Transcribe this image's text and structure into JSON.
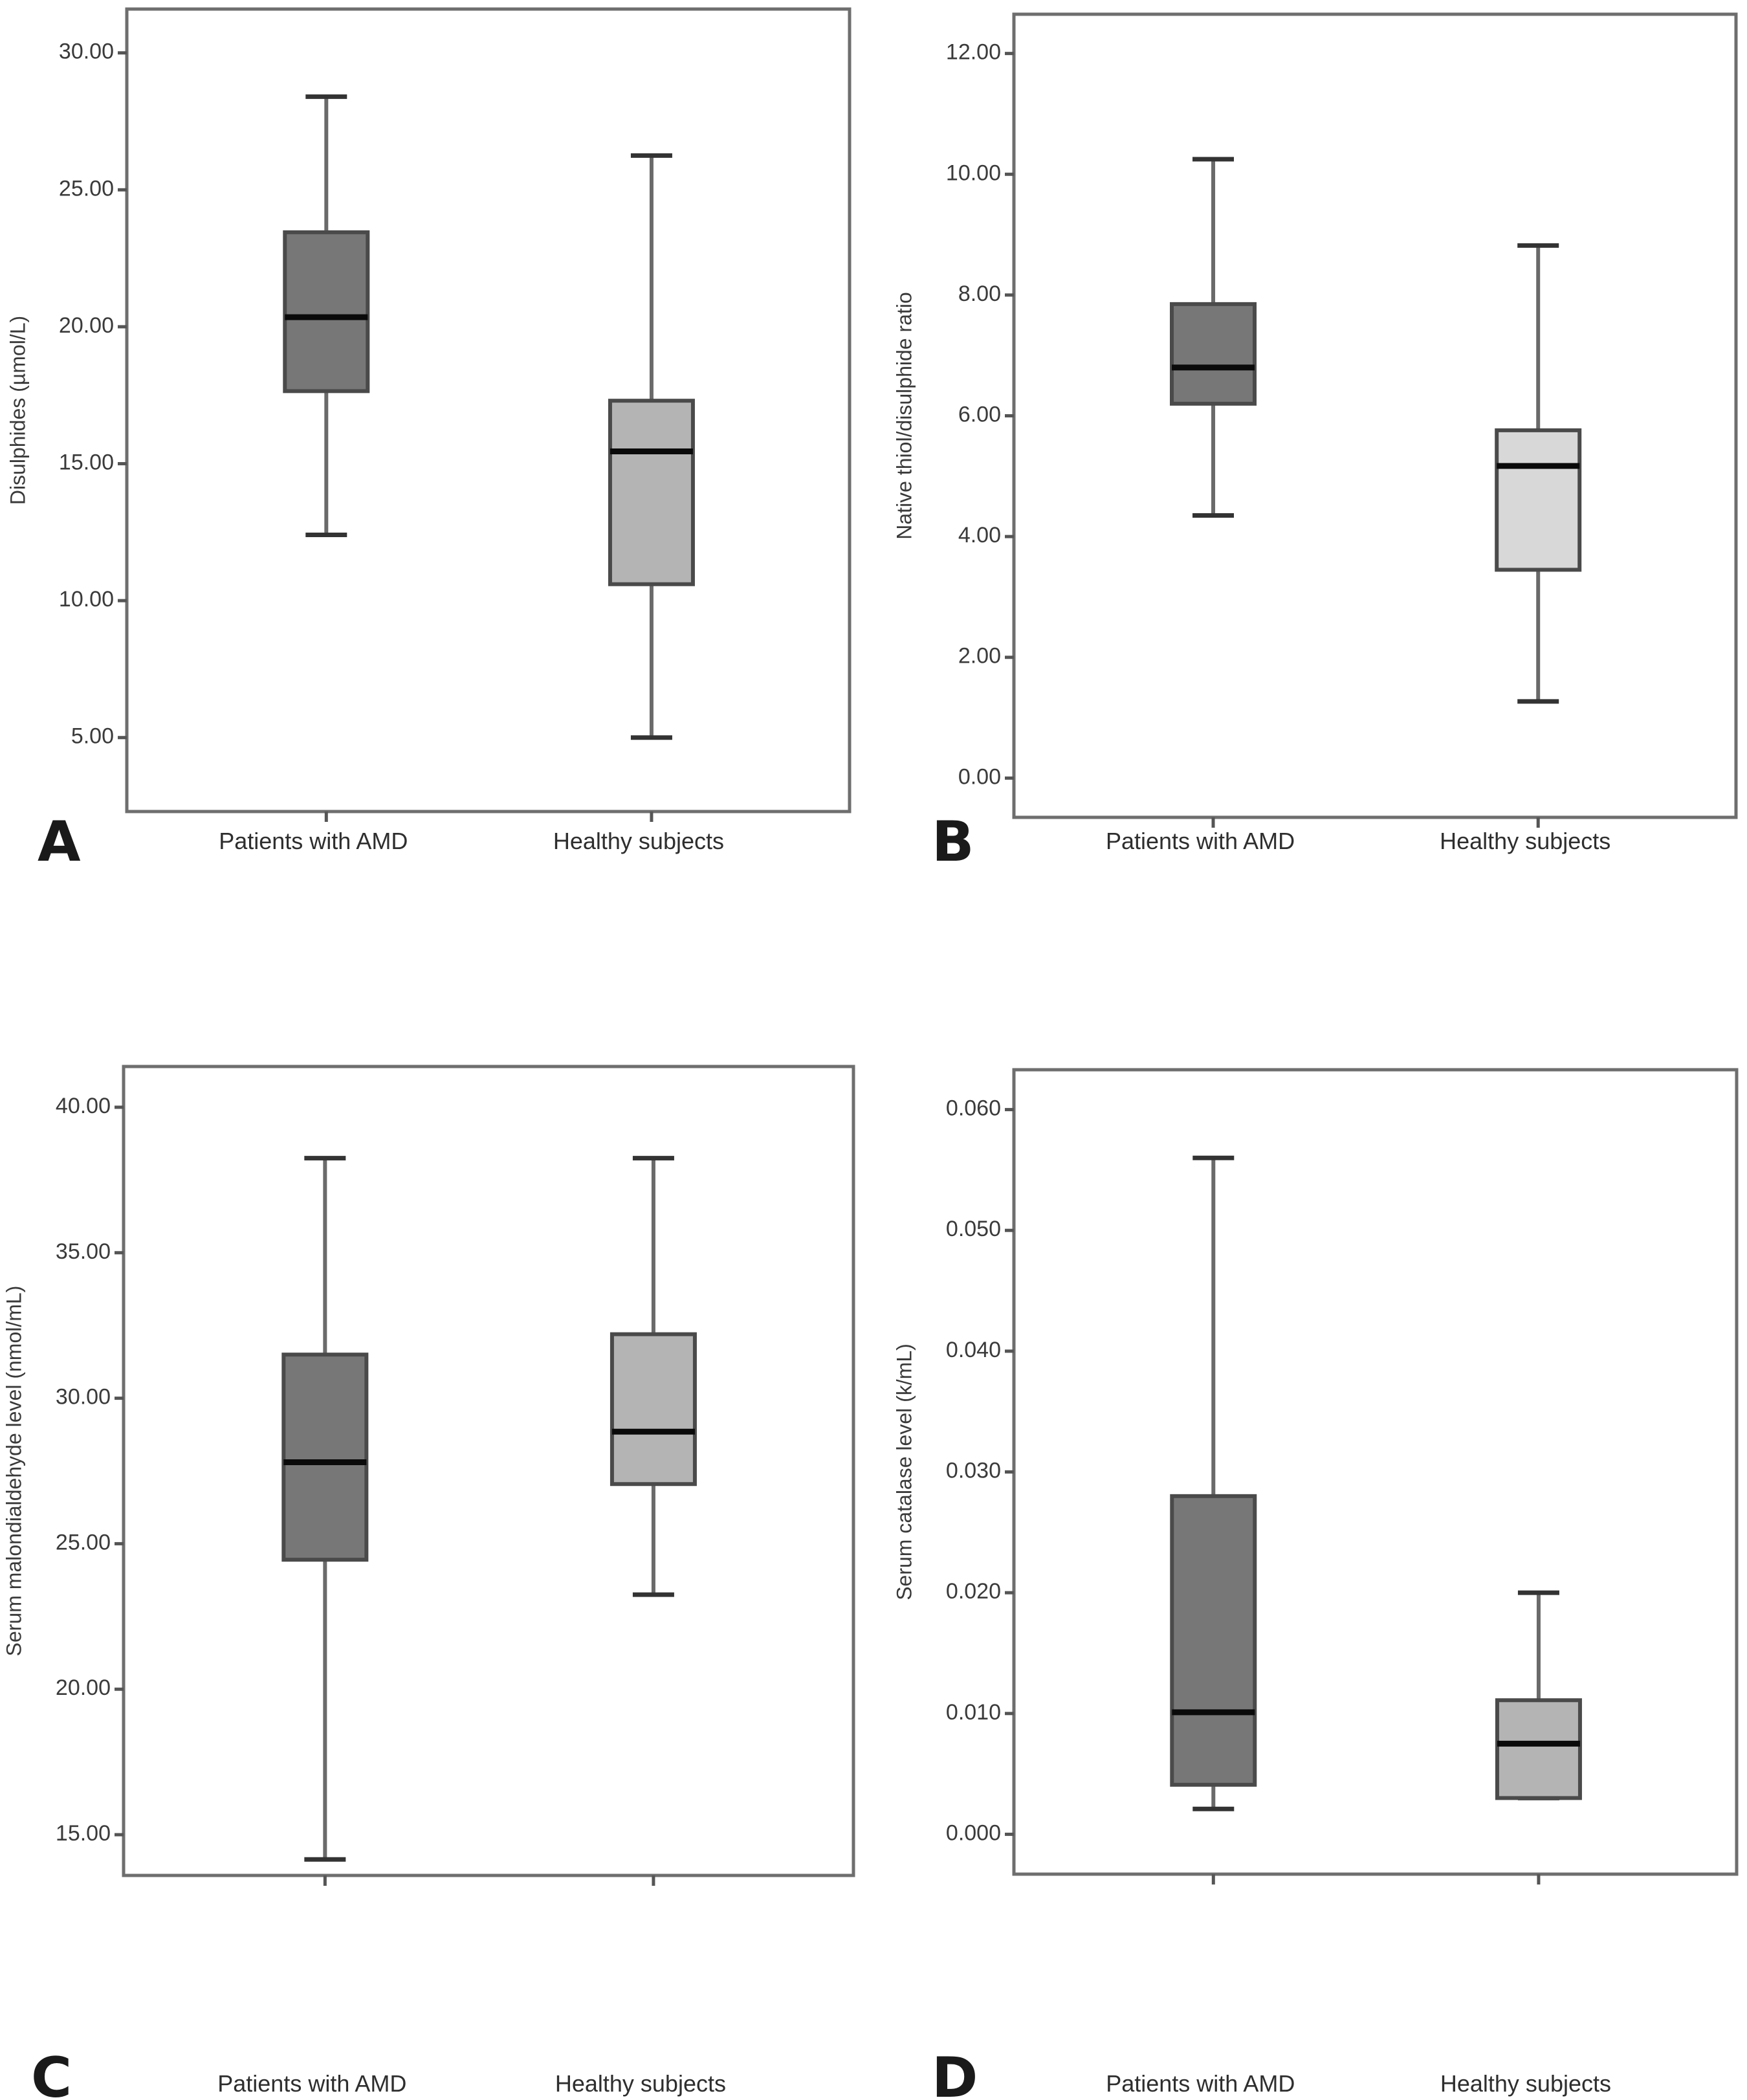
{
  "colors": {
    "amd_fill": "#777777",
    "healthy_fill": "#b4b4b4",
    "healthy_fill_light": "#d8d8d8"
  },
  "chart_data": [
    {
      "panel": "A",
      "type": "boxplot",
      "title": "",
      "xlabel": "",
      "ylabel": "Disulphides (µmol/L)",
      "categories": [
        "Patients with AMD",
        "Healthy subjects"
      ],
      "yticks": [
        5,
        10,
        15,
        20,
        25,
        30
      ],
      "ytick_labels": [
        "5.00",
        "10.00",
        "15.00",
        "20.00",
        "25.00",
        "30.00"
      ],
      "ylim": [
        2.3,
        31.6
      ],
      "grid": false,
      "series": [
        {
          "name": "Patients with AMD",
          "whisker_low": 12.4,
          "q1": 17.65,
          "median": 20.35,
          "q3": 23.45,
          "whisker_high": 28.4,
          "fill": "amd_fill"
        },
        {
          "name": "Healthy subjects",
          "whisker_low": 5.0,
          "q1": 10.6,
          "median": 15.45,
          "q3": 17.3,
          "whisker_high": 26.25,
          "fill": "healthy_fill"
        }
      ]
    },
    {
      "panel": "B",
      "type": "boxplot",
      "title": "",
      "xlabel": "",
      "ylabel": "Native thiol/disulphide ratio",
      "categories": [
        "Patients with AMD",
        "Healthy subjects"
      ],
      "yticks": [
        0,
        2,
        4,
        6,
        8,
        10,
        12
      ],
      "ytick_labels": [
        "0.00",
        "2.00",
        "4.00",
        "6.00",
        "8.00",
        "10.00",
        "12.00"
      ],
      "ylim": [
        -0.65,
        12.65
      ],
      "grid": false,
      "series": [
        {
          "name": "Patients with AMD",
          "whisker_low": 4.35,
          "q1": 6.2,
          "median": 6.8,
          "q3": 7.85,
          "whisker_high": 10.25,
          "fill": "amd_fill"
        },
        {
          "name": "Healthy subjects",
          "whisker_low": 1.27,
          "q1": 3.45,
          "median": 5.17,
          "q3": 5.76,
          "whisker_high": 8.82,
          "fill": "healthy_fill_light"
        }
      ]
    },
    {
      "panel": "C",
      "type": "boxplot",
      "title": "",
      "xlabel": "",
      "ylabel": "Serum malondialdehyde level (nmol/mL)",
      "categories": [
        "Patients with AMD",
        "Healthy subjects"
      ],
      "yticks": [
        15,
        20,
        25,
        30,
        35,
        40
      ],
      "ytick_labels": [
        "15.00",
        "20.00",
        "25.00",
        "30.00",
        "35.00",
        "40.00"
      ],
      "ylim": [
        13.6,
        41.4
      ],
      "grid": false,
      "series": [
        {
          "name": "Patients with AMD",
          "whisker_low": 14.15,
          "q1": 24.45,
          "median": 27.8,
          "q3": 31.5,
          "whisker_high": 38.25,
          "fill": "amd_fill"
        },
        {
          "name": "Healthy subjects",
          "whisker_low": 23.25,
          "q1": 27.05,
          "median": 28.85,
          "q3": 32.2,
          "whisker_high": 38.25,
          "fill": "healthy_fill"
        }
      ]
    },
    {
      "panel": "D",
      "type": "boxplot",
      "title": "",
      "xlabel": "",
      "ylabel": "Serum catalase level (k/mL)",
      "categories": [
        "Patients with AMD",
        "Healthy subjects"
      ],
      "yticks": [
        0.0,
        0.01,
        0.02,
        0.03,
        0.04,
        0.05,
        0.06
      ],
      "ytick_labels": [
        "0.000",
        "0.010",
        "0.020",
        "0.030",
        "0.040",
        "0.050",
        "0.060"
      ],
      "ylim": [
        -0.0033,
        0.0633
      ],
      "grid": false,
      "series": [
        {
          "name": "Patients with AMD",
          "whisker_low": 0.0021,
          "q1": 0.0041,
          "median": 0.0101,
          "q3": 0.028,
          "whisker_high": 0.056,
          "fill": "amd_fill"
        },
        {
          "name": "Healthy subjects",
          "whisker_low": 0.003,
          "q1": 0.003,
          "median": 0.0075,
          "q3": 0.0111,
          "whisker_high": 0.02,
          "fill": "healthy_fill"
        }
      ]
    }
  ]
}
